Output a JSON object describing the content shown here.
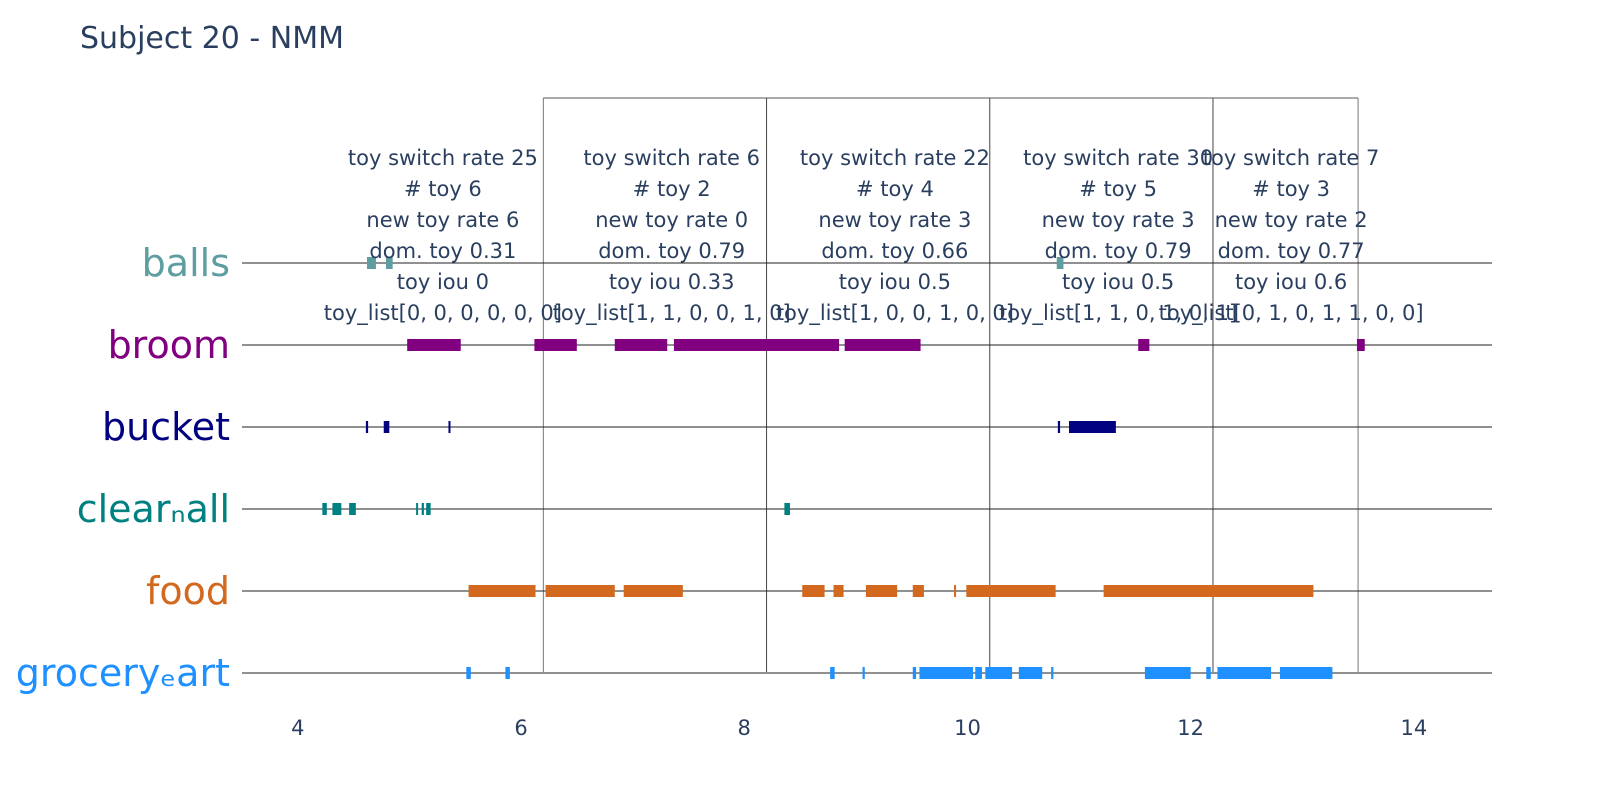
{
  "chart_data": {
    "type": "timeline",
    "title": "Subject 20 - NMM",
    "xlabel": "",
    "ylabel": "",
    "xlim": [
      3.5,
      14.7
    ],
    "x_ticks": [
      4,
      6,
      8,
      10,
      12,
      14
    ],
    "grid": false,
    "categories": [
      {
        "key": "balls",
        "label": "balls",
        "color": "#5f9ea0"
      },
      {
        "key": "broom",
        "label": "broom",
        "color": "#800080"
      },
      {
        "key": "bucket",
        "label": "bucket",
        "color": "#000080"
      },
      {
        "key": "clear_ball",
        "label": "clearₙall",
        "color": "#008080"
      },
      {
        "key": "food",
        "label": "food",
        "color": "#d2691e"
      },
      {
        "key": "grocery_cart",
        "label": "groceryₑart",
        "color": "#1e90ff"
      }
    ],
    "intervals": {
      "balls": [
        [
          4.62,
          4.7
        ],
        [
          4.79,
          4.85
        ],
        [
          10.8,
          10.86
        ]
      ],
      "broom": [
        [
          4.98,
          5.46
        ],
        [
          6.12,
          6.5
        ],
        [
          6.84,
          7.31
        ],
        [
          7.37,
          8.85
        ],
        [
          8.9,
          9.58
        ],
        [
          11.53,
          11.63
        ],
        [
          13.49,
          13.56
        ]
      ],
      "bucket": [
        [
          4.61,
          4.63
        ],
        [
          4.77,
          4.82
        ],
        [
          5.35,
          5.36
        ],
        [
          10.81,
          10.83
        ],
        [
          10.91,
          11.33
        ]
      ],
      "clear_ball": [
        [
          4.22,
          4.26
        ],
        [
          4.31,
          4.39
        ],
        [
          4.46,
          4.52
        ],
        [
          5.06,
          5.07
        ],
        [
          5.11,
          5.13
        ],
        [
          5.15,
          5.19
        ],
        [
          8.36,
          8.41
        ]
      ],
      "food": [
        [
          5.53,
          6.13
        ],
        [
          6.22,
          6.84
        ],
        [
          6.92,
          7.45
        ],
        [
          8.52,
          8.72
        ],
        [
          8.8,
          8.89
        ],
        [
          9.09,
          9.37
        ],
        [
          9.51,
          9.61
        ],
        [
          9.88,
          9.89
        ],
        [
          9.99,
          10.79
        ],
        [
          11.22,
          13.1
        ]
      ],
      "grocery_cart": [
        [
          5.51,
          5.55
        ],
        [
          5.86,
          5.9
        ],
        [
          8.77,
          8.81
        ],
        [
          9.06,
          9.08
        ],
        [
          9.51,
          9.54
        ],
        [
          9.57,
          10.05
        ],
        [
          10.07,
          10.13
        ],
        [
          10.16,
          10.4
        ],
        [
          10.46,
          10.67
        ],
        [
          10.75,
          10.77
        ],
        [
          11.59,
          12.0
        ],
        [
          12.14,
          12.18
        ],
        [
          12.24,
          12.72
        ],
        [
          12.8,
          13.27
        ]
      ]
    },
    "window_bounds": [
      6.2,
      8.2,
      10.2,
      12.2,
      13.5
    ],
    "window_annotations": [
      {
        "x": 5.3,
        "lines": [
          "toy switch rate 25",
          "# toy 6",
          "new toy rate 6",
          "dom. toy 0.31",
          "toy iou 0",
          "toy_list[0, 0, 0, 0, 0, 0]"
        ]
      },
      {
        "x": 7.35,
        "lines": [
          "toy switch rate 6",
          "# toy 2",
          "new toy rate 0",
          "dom. toy 0.79",
          "toy iou 0.33",
          "toy_list[1, 1, 0, 0, 1, 0]"
        ]
      },
      {
        "x": 9.35,
        "lines": [
          "toy switch rate 22",
          "# toy 4",
          "new toy rate 3",
          "dom. toy 0.66",
          "toy iou 0.5",
          "toy_list[1, 0, 0, 1, 0, 0]"
        ]
      },
      {
        "x": 11.35,
        "lines": [
          "toy switch rate 30",
          "# toy 5",
          "new toy rate 3",
          "dom. toy 0.79",
          "toy iou 0.5",
          "toy_list[1, 1, 0, 1, 0, 1]"
        ]
      },
      {
        "x": 12.9,
        "lines": [
          "toy switch rate 7",
          "# toy 3",
          "new toy rate 2",
          "dom. toy 0.77",
          "toy iou 0.6",
          "toy_list[0, 1, 0, 1, 1, 0, 0]"
        ]
      }
    ]
  }
}
